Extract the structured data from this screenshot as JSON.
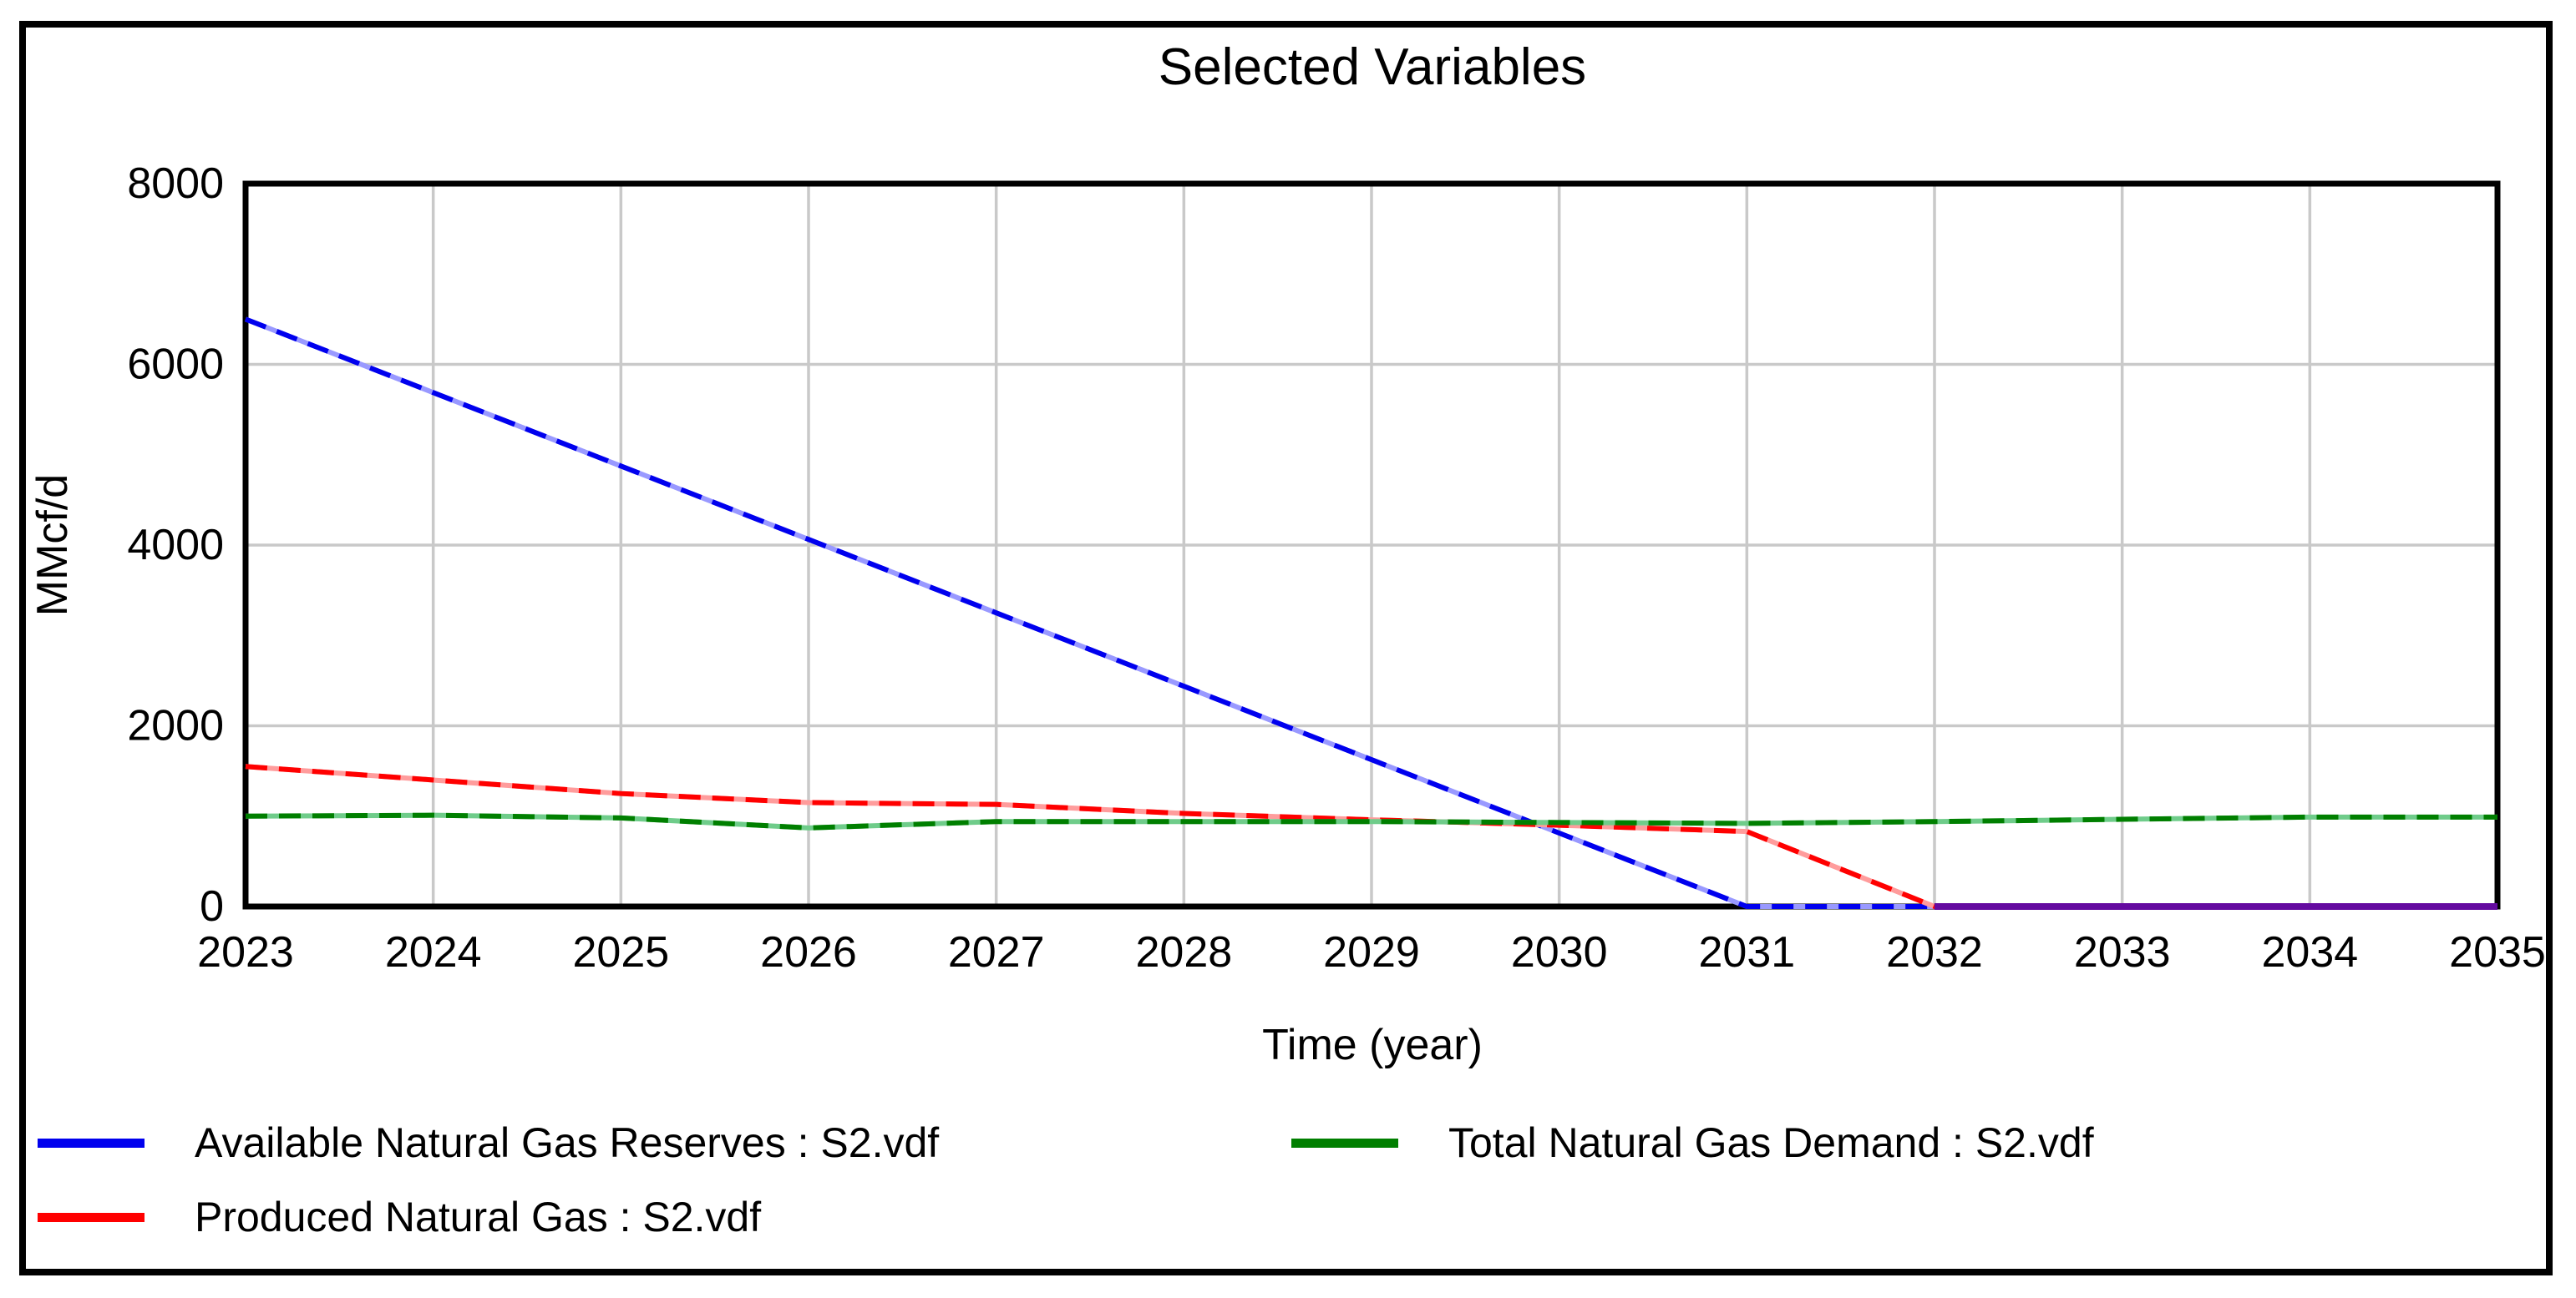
{
  "chart_data": {
    "type": "line",
    "title": "Selected Variables",
    "xlabel": "Time (year)",
    "ylabel": "MMcf/d",
    "xlim": [
      2023,
      2035
    ],
    "ylim": [
      0,
      8000
    ],
    "xticks": [
      2023,
      2024,
      2025,
      2026,
      2027,
      2028,
      2029,
      2030,
      2031,
      2032,
      2033,
      2034,
      2035
    ],
    "yticks": [
      0,
      2000,
      4000,
      6000,
      8000
    ],
    "grid": true,
    "grid_color": "#c9c9c9",
    "frame_color": "#000000",
    "legend_position": "bottom",
    "x": [
      2023,
      2024,
      2025,
      2026,
      2027,
      2028,
      2029,
      2030,
      2031,
      2032,
      2033,
      2034,
      2035
    ],
    "series": [
      {
        "name": "Available Natural Gas Reserves : S2.vdf",
        "color": "#0000ee",
        "color_light": "#9999ff",
        "values": [
          6500,
          5688,
          4875,
          4063,
          3250,
          2438,
          1625,
          813,
          0,
          0,
          0,
          0,
          0
        ]
      },
      {
        "name": "Produced Natural Gas : S2.vdf",
        "color": "#ff0000",
        "color_light": "#ff9c9c",
        "values": [
          1550,
          1400,
          1250,
          1150,
          1130,
          1030,
          960,
          900,
          830,
          0,
          0,
          0,
          0
        ]
      },
      {
        "name": "Total Natural Gas Demand : S2.vdf",
        "color": "#007f00",
        "color_light": "#6fcc8a",
        "values": [
          1000,
          1010,
          980,
          870,
          940,
          940,
          940,
          930,
          920,
          940,
          965,
          990,
          990
        ]
      }
    ],
    "overlap_segment": {
      "x_start": 2032,
      "x_end": 2035,
      "value": 0,
      "color": "#640aa0"
    }
  }
}
